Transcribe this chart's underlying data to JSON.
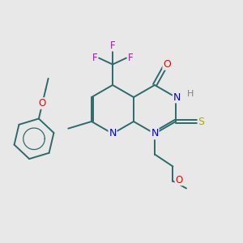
{
  "background_color": "#e8e8e8",
  "bond_color": "#2d6b6b",
  "atom_colors": {
    "N": "#0000ee",
    "O": "#ff0000",
    "S": "#aaaa00",
    "F": "#cc00cc",
    "H": "#808080",
    "C": "#2d6b6b"
  },
  "figsize": [
    3.0,
    3.0
  ],
  "dpi": 100
}
